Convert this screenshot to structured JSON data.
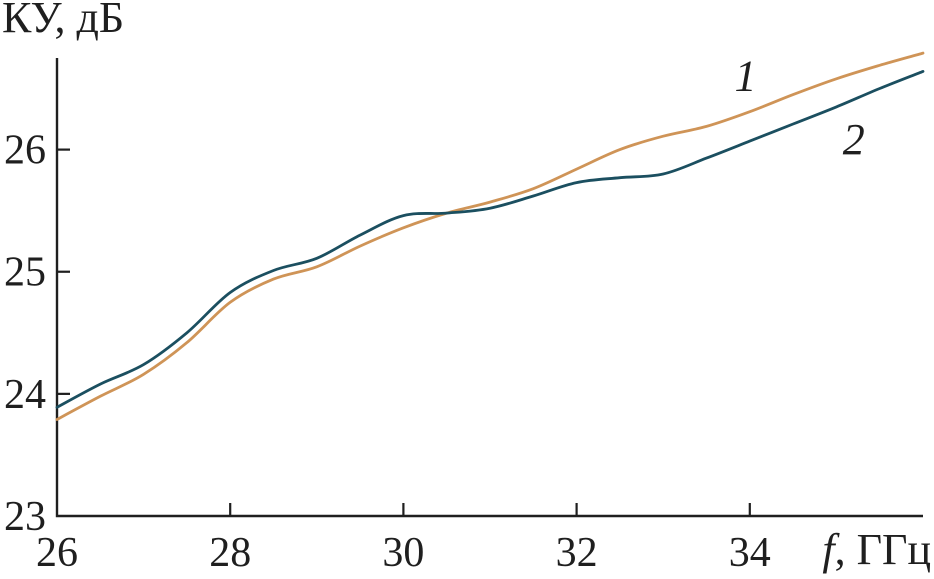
{
  "figure": {
    "background": "#ffffff",
    "text_color": "#1f1f1f"
  },
  "chart_data": {
    "type": "line",
    "title": "",
    "ylabel": "КУ, дБ",
    "xlabel": "f, ГГц",
    "xlabel_var": "f",
    "xlabel_units": ", ГГц",
    "xlim": [
      26,
      36
    ],
    "ylim": [
      23,
      26.75
    ],
    "xticks": [
      26,
      28,
      30,
      32,
      34
    ],
    "yticks": [
      23,
      24,
      25,
      26
    ],
    "grid": false,
    "legend_position": "inline-curve-labels",
    "axis_color": "#1f1f1f",
    "x": [
      26,
      26.5,
      27,
      27.5,
      28,
      28.5,
      29,
      29.5,
      30,
      30.5,
      31,
      31.5,
      32,
      32.5,
      33,
      33.5,
      34,
      34.5,
      35,
      35.5,
      36
    ],
    "series": [
      {
        "name": "1",
        "color": "#cf9457",
        "label_x": 33.95,
        "label_y": 26.6,
        "values": [
          23.79,
          23.98,
          24.16,
          24.42,
          24.75,
          24.94,
          25.04,
          25.21,
          25.36,
          25.48,
          25.57,
          25.68,
          25.84,
          26.0,
          26.11,
          26.19,
          26.31,
          26.45,
          26.58,
          26.69,
          26.79
        ]
      },
      {
        "name": "2",
        "color": "#1b4f60",
        "label_x": 35.2,
        "label_y": 26.08,
        "values": [
          23.89,
          24.08,
          24.24,
          24.5,
          24.83,
          25.01,
          25.11,
          25.3,
          25.46,
          25.48,
          25.52,
          25.62,
          25.73,
          25.77,
          25.8,
          25.93,
          26.07,
          26.21,
          26.35,
          26.5,
          26.64
        ]
      }
    ]
  }
}
